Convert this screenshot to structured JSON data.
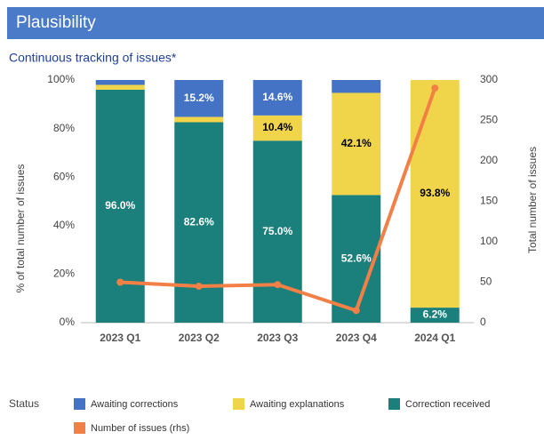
{
  "header": {
    "title": "Plausibility"
  },
  "chart_data": {
    "type": "stacked_bar_line",
    "title": "Continuous tracking of issues*",
    "y_label": "% of total number of issues",
    "y2_label": "Total number of issues",
    "legend_title": "Status",
    "categories": [
      "2023 Q1",
      "2023 Q2",
      "2023 Q3",
      "2023 Q4",
      "2024 Q1"
    ],
    "series": [
      {
        "name": "Awaiting corrections",
        "color": "#4472c4",
        "values": [
          2.0,
          15.2,
          14.6,
          5.3,
          0
        ],
        "value_labels": [
          null,
          "15.2%",
          "14.6%",
          null,
          null
        ],
        "label_color": "#ffffff"
      },
      {
        "name": "Awaiting explanations",
        "color": "#f0d54a",
        "values": [
          2.0,
          2.2,
          10.4,
          42.1,
          93.8
        ],
        "value_labels": [
          null,
          null,
          "10.4%",
          "42.1%",
          "93.8%"
        ],
        "label_color": "#000000"
      },
      {
        "name": "Correction received",
        "color": "#1b7f7b",
        "values": [
          96.0,
          82.6,
          75.0,
          52.6,
          6.2
        ],
        "value_labels": [
          "96.0%",
          "82.6%",
          "75.0%",
          "52.6%",
          "6.2%"
        ],
        "label_color": "#ffffff"
      },
      {
        "name": "Number of issues (rhs)",
        "color": "#f28046",
        "type": "line",
        "axis": "y2",
        "values": [
          50,
          45,
          47,
          15,
          290
        ]
      }
    ],
    "ylim": [
      0,
      100
    ],
    "yticks": [
      {
        "value": 0,
        "label": "0%"
      },
      {
        "value": 20,
        "label": "20%"
      },
      {
        "value": 40,
        "label": "40%"
      },
      {
        "value": 60,
        "label": "60%"
      },
      {
        "value": 80,
        "label": "80%"
      },
      {
        "value": 100,
        "label": "100%"
      }
    ],
    "y2lim": [
      0,
      300
    ],
    "y2ticks": [
      0,
      50,
      100,
      150,
      200,
      250,
      300
    ]
  }
}
